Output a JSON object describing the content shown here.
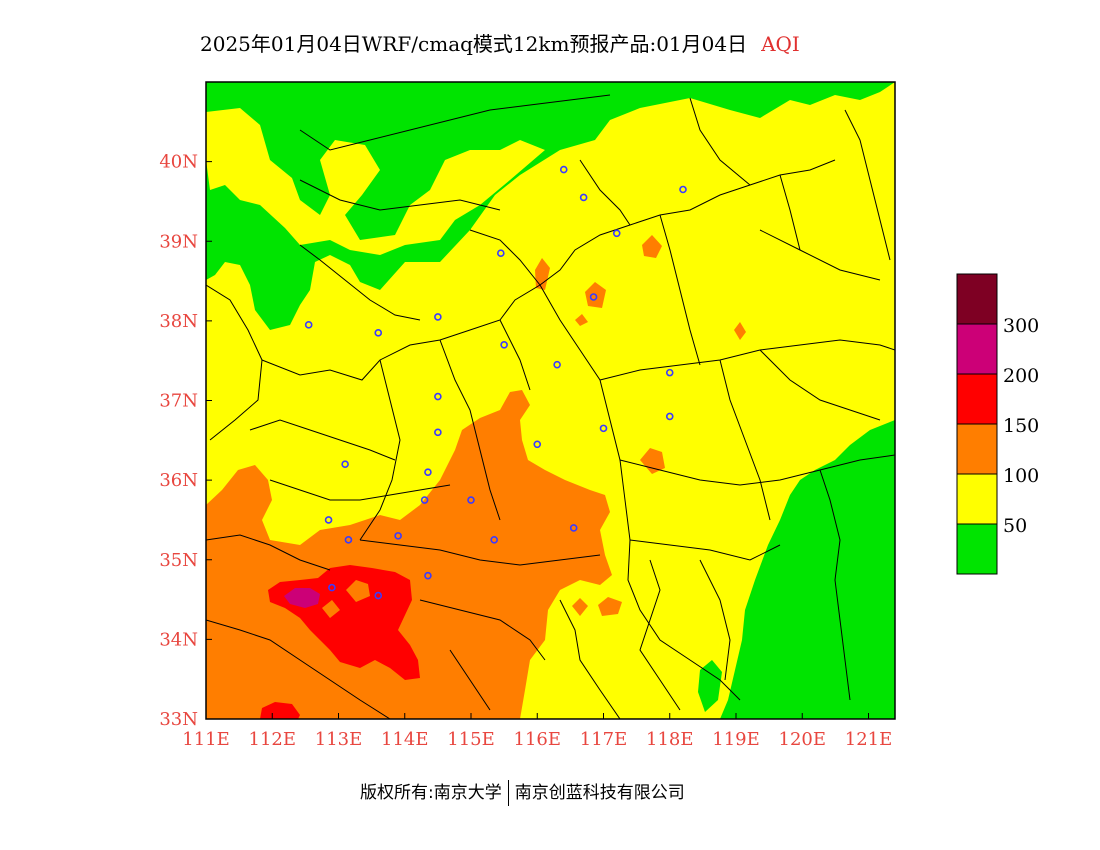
{
  "title": {
    "main": "2025年01月04日WRF/cmaq模式12km预报产品:01月04日",
    "variable": "AQI"
  },
  "footer": {
    "left": "版权所有:南京大学",
    "right": "南京创蓝科技有限公司"
  },
  "map": {
    "lon_range": [
      111,
      121.4
    ],
    "lat_range": [
      33,
      41
    ],
    "lon_ticks": [
      "111E",
      "112E",
      "113E",
      "114E",
      "115E",
      "116E",
      "117E",
      "118E",
      "119E",
      "120E",
      "121E"
    ],
    "lat_ticks": [
      "33N",
      "34N",
      "35N",
      "36N",
      "37N",
      "38N",
      "39N",
      "40N"
    ],
    "axis_color": "#e8463f",
    "ocean_color": "#00e400",
    "stations_lonlat": [
      [
        116.4,
        39.9
      ],
      [
        116.7,
        39.55
      ],
      [
        118.2,
        39.65
      ],
      [
        117.2,
        39.1
      ],
      [
        115.45,
        38.85
      ],
      [
        116.85,
        38.3
      ],
      [
        112.55,
        37.95
      ],
      [
        113.6,
        37.85
      ],
      [
        114.5,
        38.05
      ],
      [
        115.5,
        37.7
      ],
      [
        116.3,
        37.45
      ],
      [
        118.0,
        37.35
      ],
      [
        114.5,
        37.05
      ],
      [
        114.5,
        36.6
      ],
      [
        116.0,
        36.45
      ],
      [
        117.0,
        36.65
      ],
      [
        118.0,
        36.8
      ],
      [
        113.1,
        36.2
      ],
      [
        114.35,
        36.1
      ],
      [
        114.3,
        35.75
      ],
      [
        115.0,
        35.75
      ],
      [
        112.85,
        35.5
      ],
      [
        113.15,
        35.25
      ],
      [
        113.9,
        35.3
      ],
      [
        115.35,
        35.25
      ],
      [
        116.55,
        35.4
      ],
      [
        112.9,
        34.65
      ],
      [
        114.35,
        34.8
      ],
      [
        113.6,
        34.55
      ]
    ]
  },
  "legend": {
    "title": "AQI",
    "classes": [
      {
        "label": "",
        "color": "#00e400"
      },
      {
        "label": "50",
        "color": "#ffff00"
      },
      {
        "label": "100",
        "color": "#ff7e00"
      },
      {
        "label": "150",
        "color": "#ff0000"
      },
      {
        "label": "200",
        "color": "#cc0077"
      },
      {
        "label": "300",
        "color": "#7e0023"
      }
    ]
  }
}
